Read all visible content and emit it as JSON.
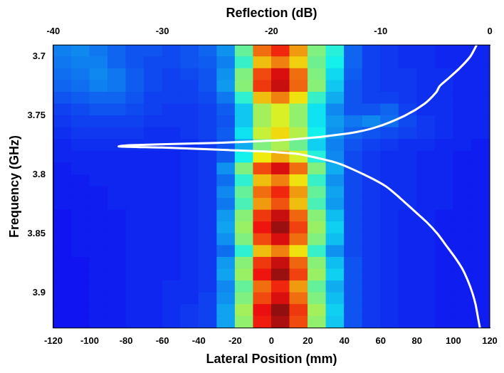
{
  "chart_data": {
    "type": "heatmap",
    "x_label": "Lateral Position (mm)",
    "y_label": "Frequency (GHz)",
    "x2_label": "Reflection (dB)",
    "xlim": [
      -120,
      120
    ],
    "xticks": [
      -120,
      -100,
      -80,
      -60,
      -40,
      -20,
      0,
      20,
      40,
      60,
      80,
      100,
      120
    ],
    "ylim": [
      3.69,
      3.93
    ],
    "yticks": [
      3.7,
      3.75,
      3.8,
      3.85,
      3.9
    ],
    "x2lim": [
      -40,
      0
    ],
    "x2ticks": [
      -40,
      -30,
      -20,
      -10,
      0
    ],
    "grid": false,
    "heatmap": {
      "zlim": [
        0,
        1
      ],
      "x": [
        -115,
        -105,
        -95,
        -85,
        -75,
        -65,
        -55,
        -45,
        -35,
        -25,
        -15,
        -5,
        5,
        15,
        25,
        35,
        45,
        55,
        65,
        75,
        85,
        95,
        105,
        115
      ],
      "y": [
        3.695,
        3.705,
        3.715,
        3.725,
        3.735,
        3.745,
        3.755,
        3.765,
        3.775,
        3.785,
        3.795,
        3.805,
        3.815,
        3.825,
        3.835,
        3.845,
        3.855,
        3.865,
        3.875,
        3.885,
        3.895,
        3.905,
        3.915,
        3.925
      ],
      "z": [
        [
          0.25,
          0.26,
          0.24,
          0.22,
          0.2,
          0.2,
          0.19,
          0.2,
          0.22,
          0.27,
          0.47,
          0.77,
          0.85,
          0.72,
          0.5,
          0.4,
          0.22,
          0.18,
          0.17,
          0.16,
          0.16,
          0.15,
          0.15,
          0.15
        ],
        [
          0.24,
          0.25,
          0.25,
          0.22,
          0.2,
          0.19,
          0.19,
          0.2,
          0.21,
          0.25,
          0.42,
          0.68,
          0.75,
          0.66,
          0.48,
          0.38,
          0.22,
          0.18,
          0.17,
          0.16,
          0.16,
          0.15,
          0.15,
          0.15
        ],
        [
          0.23,
          0.24,
          0.26,
          0.24,
          0.21,
          0.19,
          0.18,
          0.19,
          0.2,
          0.27,
          0.5,
          0.81,
          0.9,
          0.77,
          0.5,
          0.35,
          0.21,
          0.18,
          0.17,
          0.17,
          0.16,
          0.16,
          0.15,
          0.15
        ],
        [
          0.22,
          0.23,
          0.25,
          0.24,
          0.21,
          0.19,
          0.18,
          0.18,
          0.2,
          0.28,
          0.51,
          0.83,
          0.92,
          0.78,
          0.51,
          0.33,
          0.2,
          0.18,
          0.17,
          0.17,
          0.16,
          0.16,
          0.15,
          0.15
        ],
        [
          0.2,
          0.21,
          0.22,
          0.22,
          0.2,
          0.18,
          0.18,
          0.18,
          0.19,
          0.24,
          0.41,
          0.68,
          0.75,
          0.64,
          0.42,
          0.3,
          0.2,
          0.18,
          0.18,
          0.17,
          0.16,
          0.16,
          0.15,
          0.15
        ],
        [
          0.18,
          0.19,
          0.2,
          0.2,
          0.19,
          0.18,
          0.17,
          0.17,
          0.18,
          0.21,
          0.33,
          0.54,
          0.6,
          0.52,
          0.36,
          0.26,
          0.2,
          0.2,
          0.22,
          0.18,
          0.16,
          0.16,
          0.15,
          0.15
        ],
        [
          0.17,
          0.18,
          0.18,
          0.18,
          0.18,
          0.17,
          0.17,
          0.17,
          0.18,
          0.2,
          0.33,
          0.54,
          0.6,
          0.52,
          0.36,
          0.28,
          0.24,
          0.26,
          0.23,
          0.19,
          0.17,
          0.16,
          0.15,
          0.15
        ],
        [
          0.16,
          0.17,
          0.17,
          0.17,
          0.17,
          0.16,
          0.16,
          0.17,
          0.18,
          0.21,
          0.36,
          0.58,
          0.65,
          0.56,
          0.38,
          0.27,
          0.22,
          0.2,
          0.19,
          0.18,
          0.17,
          0.16,
          0.15,
          0.15
        ],
        [
          0.15,
          0.16,
          0.16,
          0.16,
          0.16,
          0.16,
          0.16,
          0.16,
          0.17,
          0.2,
          0.3,
          0.5,
          0.55,
          0.48,
          0.34,
          0.25,
          0.2,
          0.18,
          0.17,
          0.16,
          0.16,
          0.15,
          0.15,
          0.14
        ],
        [
          0.15,
          0.15,
          0.15,
          0.15,
          0.15,
          0.15,
          0.15,
          0.16,
          0.17,
          0.21,
          0.38,
          0.63,
          0.7,
          0.6,
          0.4,
          0.26,
          0.19,
          0.17,
          0.16,
          0.16,
          0.15,
          0.15,
          0.14,
          0.14
        ],
        [
          0.14,
          0.15,
          0.15,
          0.15,
          0.15,
          0.15,
          0.15,
          0.16,
          0.17,
          0.27,
          0.5,
          0.81,
          0.9,
          0.77,
          0.5,
          0.3,
          0.19,
          0.17,
          0.16,
          0.16,
          0.15,
          0.15,
          0.14,
          0.14
        ],
        [
          0.14,
          0.14,
          0.15,
          0.15,
          0.15,
          0.15,
          0.15,
          0.16,
          0.17,
          0.23,
          0.41,
          0.68,
          0.75,
          0.64,
          0.42,
          0.27,
          0.19,
          0.17,
          0.16,
          0.16,
          0.15,
          0.15,
          0.14,
          0.14
        ],
        [
          0.14,
          0.14,
          0.14,
          0.15,
          0.15,
          0.15,
          0.15,
          0.16,
          0.17,
          0.26,
          0.47,
          0.77,
          0.85,
          0.72,
          0.47,
          0.29,
          0.19,
          0.17,
          0.16,
          0.16,
          0.15,
          0.15,
          0.14,
          0.14
        ],
        [
          0.14,
          0.14,
          0.14,
          0.15,
          0.15,
          0.15,
          0.15,
          0.16,
          0.17,
          0.24,
          0.44,
          0.72,
          0.8,
          0.68,
          0.44,
          0.28,
          0.19,
          0.17,
          0.16,
          0.16,
          0.15,
          0.15,
          0.14,
          0.14
        ],
        [
          0.13,
          0.14,
          0.14,
          0.14,
          0.15,
          0.15,
          0.15,
          0.16,
          0.17,
          0.28,
          0.51,
          0.83,
          0.92,
          0.78,
          0.51,
          0.32,
          0.19,
          0.17,
          0.16,
          0.15,
          0.15,
          0.14,
          0.14,
          0.14
        ],
        [
          0.13,
          0.14,
          0.14,
          0.14,
          0.15,
          0.15,
          0.15,
          0.16,
          0.17,
          0.29,
          0.53,
          0.87,
          0.97,
          0.82,
          0.53,
          0.34,
          0.19,
          0.17,
          0.16,
          0.15,
          0.15,
          0.14,
          0.14,
          0.14
        ],
        [
          0.13,
          0.14,
          0.14,
          0.14,
          0.15,
          0.15,
          0.15,
          0.16,
          0.17,
          0.27,
          0.5,
          0.81,
          0.9,
          0.77,
          0.5,
          0.32,
          0.19,
          0.17,
          0.16,
          0.15,
          0.15,
          0.14,
          0.14,
          0.14
        ],
        [
          0.13,
          0.14,
          0.14,
          0.14,
          0.15,
          0.15,
          0.15,
          0.16,
          0.17,
          0.23,
          0.41,
          0.68,
          0.75,
          0.64,
          0.42,
          0.27,
          0.19,
          0.17,
          0.16,
          0.15,
          0.15,
          0.14,
          0.14,
          0.14
        ],
        [
          0.13,
          0.13,
          0.14,
          0.14,
          0.15,
          0.15,
          0.15,
          0.16,
          0.17,
          0.28,
          0.51,
          0.83,
          0.92,
          0.78,
          0.51,
          0.32,
          0.2,
          0.17,
          0.16,
          0.15,
          0.15,
          0.14,
          0.14,
          0.14
        ],
        [
          0.13,
          0.13,
          0.14,
          0.14,
          0.15,
          0.15,
          0.15,
          0.16,
          0.17,
          0.29,
          0.53,
          0.87,
          0.97,
          0.82,
          0.53,
          0.34,
          0.2,
          0.17,
          0.16,
          0.15,
          0.15,
          0.14,
          0.14,
          0.14
        ],
        [
          0.13,
          0.13,
          0.14,
          0.14,
          0.15,
          0.15,
          0.16,
          0.16,
          0.17,
          0.26,
          0.47,
          0.77,
          0.85,
          0.72,
          0.47,
          0.3,
          0.2,
          0.17,
          0.16,
          0.15,
          0.15,
          0.14,
          0.14,
          0.14
        ],
        [
          0.13,
          0.13,
          0.14,
          0.14,
          0.15,
          0.15,
          0.16,
          0.16,
          0.18,
          0.27,
          0.5,
          0.81,
          0.9,
          0.77,
          0.5,
          0.32,
          0.2,
          0.17,
          0.16,
          0.15,
          0.15,
          0.14,
          0.14,
          0.14
        ],
        [
          0.13,
          0.13,
          0.14,
          0.14,
          0.15,
          0.15,
          0.16,
          0.17,
          0.18,
          0.29,
          0.54,
          0.88,
          0.98,
          0.83,
          0.54,
          0.34,
          0.2,
          0.17,
          0.16,
          0.15,
          0.15,
          0.14,
          0.14,
          0.14
        ],
        [
          0.13,
          0.13,
          0.14,
          0.14,
          0.15,
          0.15,
          0.16,
          0.17,
          0.18,
          0.29,
          0.52,
          0.86,
          0.95,
          0.81,
          0.52,
          0.33,
          0.2,
          0.17,
          0.16,
          0.15,
          0.15,
          0.14,
          0.14,
          0.14
        ]
      ]
    },
    "series": [
      {
        "type": "line",
        "color": "#ffffff",
        "axis": "x2",
        "x": [
          -1.2,
          -1.8,
          -2.8,
          -4.0,
          -4.6,
          -4.9,
          -6.0,
          -7.8,
          -10.5,
          -13,
          -18,
          -25,
          -33,
          -34,
          -30,
          -24,
          -18,
          -14,
          -11.5,
          -9.5,
          -8.2,
          -7.0,
          -5.8,
          -4.8,
          -4.0,
          -3.2,
          -2.5,
          -2.0,
          -1.6,
          -1.3,
          -1.1,
          -0.9
        ],
        "y": [
          3.69,
          3.7,
          3.71,
          3.72,
          3.725,
          3.73,
          3.74,
          3.75,
          3.76,
          3.765,
          3.77,
          3.773,
          3.775,
          3.776,
          3.777,
          3.779,
          3.782,
          3.79,
          3.8,
          3.81,
          3.82,
          3.83,
          3.84,
          3.85,
          3.86,
          3.87,
          3.88,
          3.89,
          3.9,
          3.91,
          3.92,
          3.93
        ]
      }
    ]
  }
}
